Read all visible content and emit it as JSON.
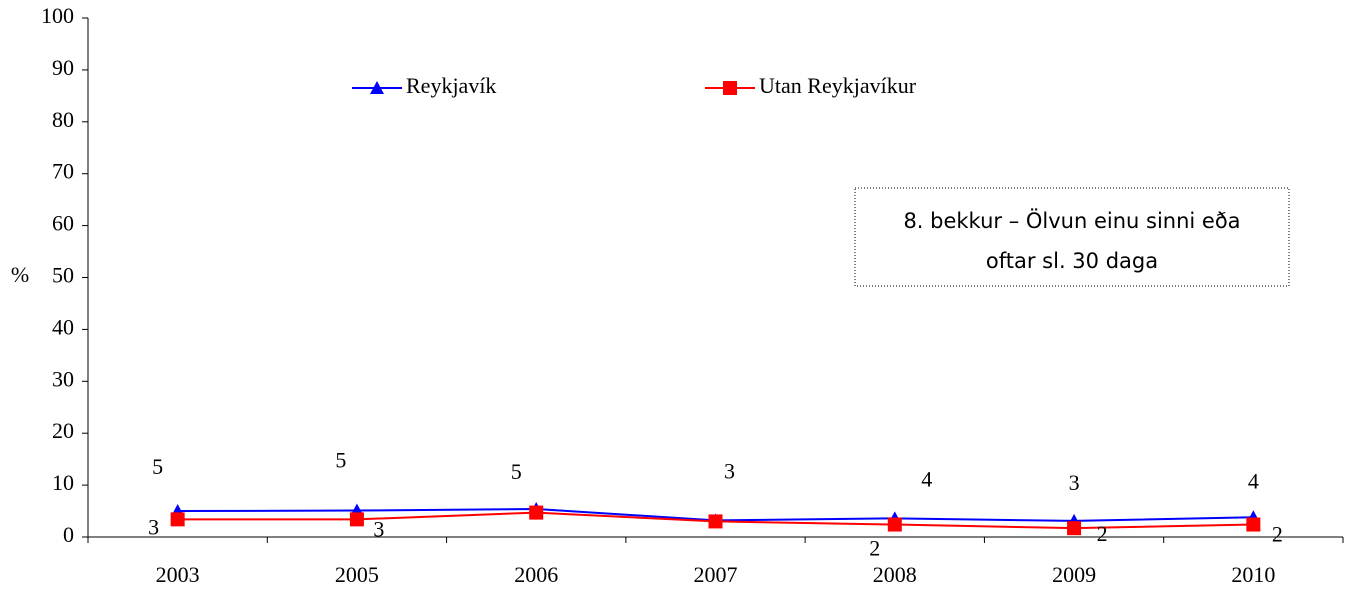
{
  "chart_data": {
    "type": "line",
    "y_label": "%",
    "annotation": [
      "8. bekkur – Ölvun einu sinni eða",
      "oftar sl. 30 daga"
    ],
    "categories": [
      "2003",
      "2005",
      "2006",
      "2007",
      "2008",
      "2009",
      "2010"
    ],
    "series": [
      {
        "name": "Reykjavík",
        "color": "#0000ff",
        "marker": "triangle",
        "values": [
          5.0,
          5.1,
          5.4,
          3.2,
          3.6,
          3.1,
          3.8
        ],
        "value_labels": [
          "5",
          "5",
          "5",
          "3",
          "4",
          "3",
          "4"
        ]
      },
      {
        "name": "Utan Reykjavíkur",
        "color": "#ff0000",
        "marker": "square",
        "values": [
          3.4,
          3.4,
          4.7,
          3.0,
          2.4,
          1.7,
          2.4
        ],
        "value_labels": [
          "3",
          "3",
          "5",
          "3",
          "2",
          "2",
          "2"
        ]
      }
    ],
    "ylim": [
      0,
      100
    ],
    "yticks": [
      0,
      10,
      20,
      30,
      40,
      50,
      60,
      70,
      80,
      90,
      100
    ],
    "grid": false
  }
}
